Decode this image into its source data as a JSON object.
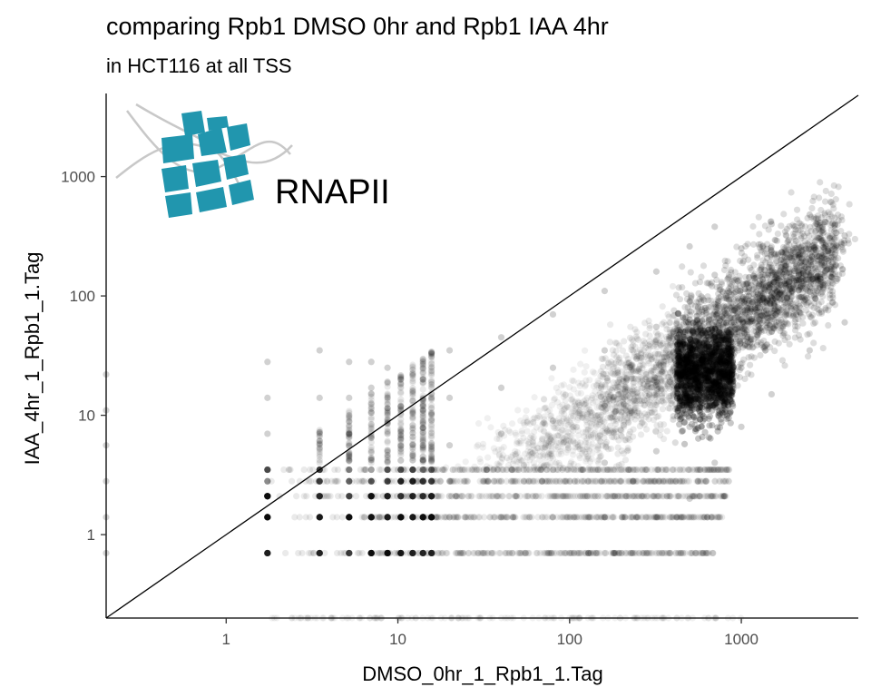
{
  "chart_data": {
    "type": "scatter",
    "title": "comparing Rpb1 DMSO 0hr and Rpb1 IAA 4hr",
    "subtitle": "in HCT116 at all TSS",
    "xlabel": "DMSO_0hr_1_Rpb1_1.Tag",
    "ylabel": "IAA_4hr_1_Rpb1_1.Tag",
    "x_scale": "log10",
    "y_scale": "log10",
    "xlim": [
      0.2,
      4800
    ],
    "ylim": [
      0.2,
      4800
    ],
    "x_ticks": [
      {
        "value": 1,
        "label": "1"
      },
      {
        "value": 10,
        "label": "10"
      },
      {
        "value": 100,
        "label": "100"
      },
      {
        "value": 1000,
        "label": "1000"
      }
    ],
    "y_ticks": [
      {
        "value": 1,
        "label": "1"
      },
      {
        "value": 10,
        "label": "10"
      },
      {
        "value": 100,
        "label": "100"
      },
      {
        "value": 1000,
        "label": "1000"
      }
    ],
    "reference_line": {
      "slope": 1,
      "intercept": 0,
      "description": "y = x"
    },
    "grid": false,
    "point_color": "#000000",
    "point_opacity": 0.06,
    "points": [
      [
        0.2,
        0.7
      ],
      [
        0.2,
        1.4
      ],
      [
        0.2,
        2.8
      ],
      [
        0.2,
        5.6
      ],
      [
        0.2,
        11
      ],
      [
        0.2,
        22
      ],
      [
        1.74,
        0.7
      ],
      [
        1.74,
        1.4
      ],
      [
        1.74,
        2.1
      ],
      [
        1.74,
        3.5
      ],
      [
        1.74,
        7
      ],
      [
        1.74,
        14
      ],
      [
        1.74,
        28
      ],
      [
        3.5,
        0.7
      ],
      [
        3.5,
        1.4
      ],
      [
        3.5,
        2.1
      ],
      [
        3.5,
        2.8
      ],
      [
        3.5,
        3.5
      ],
      [
        3.5,
        7
      ],
      [
        3.5,
        14
      ],
      [
        3.5,
        35
      ],
      [
        5.2,
        0.7
      ],
      [
        5.2,
        1.4
      ],
      [
        5.2,
        2.1
      ],
      [
        5.2,
        3.5
      ],
      [
        5.2,
        7
      ],
      [
        5.2,
        14
      ],
      [
        5.2,
        28
      ],
      [
        7,
        0.7
      ],
      [
        7,
        1.4
      ],
      [
        7,
        2.1
      ],
      [
        7,
        2.8
      ],
      [
        7,
        4.2
      ],
      [
        7,
        8.4
      ],
      [
        7,
        17
      ],
      [
        7,
        28
      ],
      [
        8.7,
        0.7
      ],
      [
        8.7,
        1.4
      ],
      [
        8.7,
        2.1
      ],
      [
        8.7,
        3.5
      ],
      [
        8.7,
        7
      ],
      [
        8.7,
        14
      ],
      [
        8.7,
        25
      ],
      [
        10.4,
        0.7
      ],
      [
        10.4,
        1.4
      ],
      [
        10.4,
        2.8
      ],
      [
        10.4,
        5.6
      ],
      [
        10.4,
        11
      ],
      [
        10.4,
        21
      ],
      [
        14,
        0.7
      ],
      [
        14,
        1.4
      ],
      [
        14,
        2.8
      ],
      [
        14,
        5.6
      ],
      [
        14,
        11
      ],
      [
        14,
        28
      ],
      [
        20,
        1.4
      ],
      [
        20,
        2.8
      ],
      [
        20,
        5.6
      ],
      [
        20,
        14
      ],
      [
        20,
        35
      ],
      [
        40,
        1.4
      ],
      [
        40,
        2.8
      ],
      [
        40,
        7
      ],
      [
        40,
        17
      ],
      [
        40,
        45
      ],
      [
        80,
        1.4
      ],
      [
        80,
        3.5
      ],
      [
        80,
        9
      ],
      [
        80,
        25
      ],
      [
        80,
        70
      ],
      [
        160,
        1.4
      ],
      [
        160,
        4
      ],
      [
        160,
        12
      ],
      [
        160,
        35
      ],
      [
        160,
        110
      ],
      [
        320,
        1.4
      ],
      [
        320,
        5
      ],
      [
        320,
        18
      ],
      [
        320,
        55
      ],
      [
        320,
        160
      ],
      [
        500,
        2
      ],
      [
        500,
        8
      ],
      [
        500,
        28
      ],
      [
        500,
        90
      ],
      [
        500,
        260
      ],
      [
        700,
        4
      ],
      [
        700,
        14
      ],
      [
        700,
        45
      ],
      [
        700,
        150
      ],
      [
        700,
        380
      ],
      [
        1000,
        8
      ],
      [
        1000,
        25
      ],
      [
        1000,
        80
      ],
      [
        1000,
        250
      ],
      [
        1500,
        15
      ],
      [
        1500,
        50
      ],
      [
        1500,
        150
      ],
      [
        1500,
        400
      ],
      [
        2500,
        35
      ],
      [
        2500,
        120
      ],
      [
        2500,
        480
      ],
      [
        4000,
        60
      ],
      [
        4000,
        320
      ]
    ]
  },
  "logo": {
    "label": "RNAPII",
    "primary_color": "#2196ae",
    "secondary_color": "#c8c8c8"
  }
}
